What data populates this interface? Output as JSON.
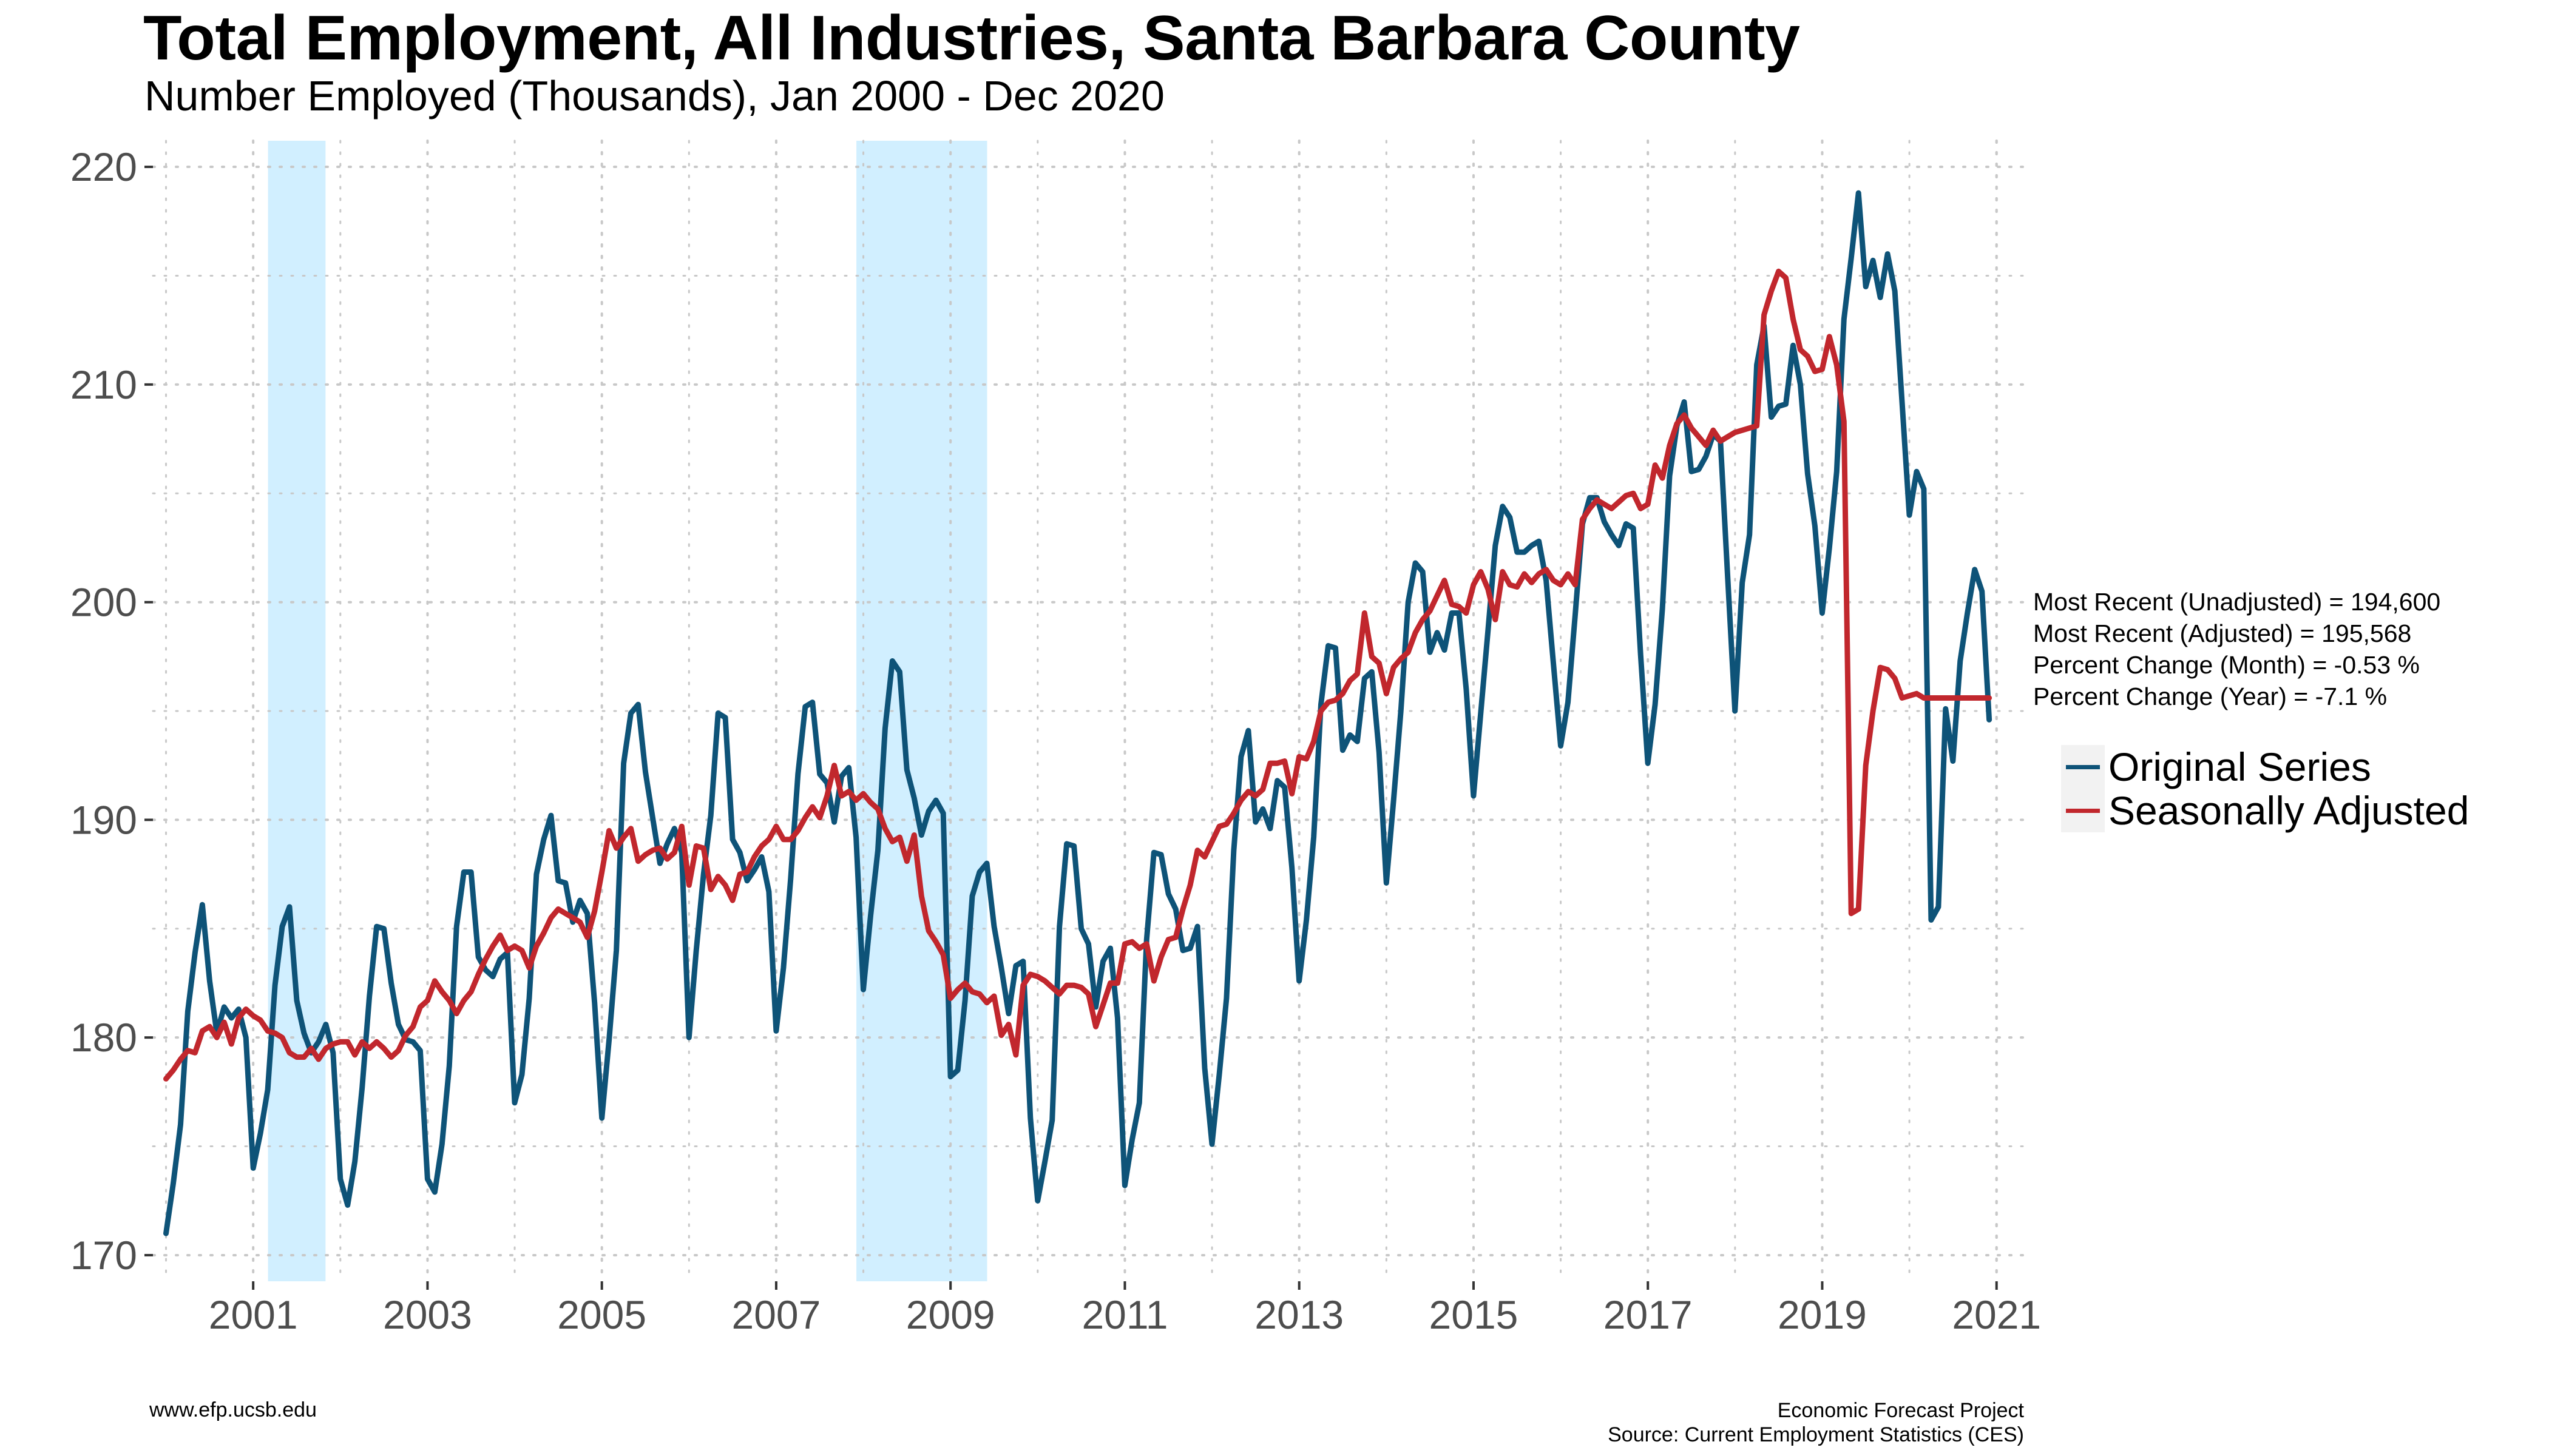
{
  "title": "Total Employment, All Industries, Santa Barbara County",
  "subtitle": "Number Employed (Thousands), Jan 2000 - Dec 2020",
  "stats": [
    "Most Recent (Unadjusted) = 194,600",
    "Most Recent (Adjusted) = 195,568",
    "Percent Change (Month) = -0.53 %",
    "Percent Change (Year) = -7.1 %"
  ],
  "footer": {
    "left": "www.efp.ucsb.edu",
    "right_line1": "Economic Forecast Project",
    "right_line2": "Source: Current Employment Statistics (CES)"
  },
  "colors": {
    "original": "#0e5378",
    "adjusted": "#c1272d",
    "recession": "#d1efff",
    "grid": "#c8c8c8"
  },
  "chart_data": {
    "type": "line",
    "x_unit": "year",
    "xlim": [
      1999.85,
      2021.35
    ],
    "ylim": [
      168.8,
      221.2
    ],
    "x_ticks": [
      2001,
      2003,
      2005,
      2007,
      2009,
      2011,
      2013,
      2015,
      2017,
      2019,
      2021
    ],
    "y_ticks": [
      170,
      180,
      190,
      200,
      210,
      220
    ],
    "grid": true,
    "legend_position": "right",
    "recessions": [
      [
        2001.17,
        2001.83
      ],
      [
        2007.92,
        2009.42
      ]
    ],
    "series": [
      {
        "name": "Original Series",
        "color": "#0e5378",
        "start": 2000.0,
        "step": 0.08333,
        "values": [
          171.0,
          173.3,
          176.0,
          181.2,
          183.9,
          186.1,
          182.6,
          180.2,
          181.4,
          180.9,
          181.3,
          180.0,
          174.0,
          175.6,
          177.6,
          182.4,
          185.1,
          186.0,
          181.7,
          180.2,
          179.3,
          179.8,
          180.6,
          179.3,
          173.5,
          172.3,
          174.3,
          177.7,
          181.9,
          185.1,
          185.0,
          182.5,
          180.6,
          179.9,
          179.8,
          179.4,
          173.5,
          172.9,
          175.1,
          178.7,
          185.1,
          187.6,
          187.6,
          183.7,
          183.1,
          182.8,
          183.6,
          183.9,
          177.0,
          178.3,
          181.8,
          187.5,
          189.1,
          190.2,
          187.2,
          187.1,
          185.3,
          186.3,
          185.7,
          181.6,
          176.3,
          179.9,
          184.0,
          192.6,
          194.9,
          195.3,
          192.2,
          190.1,
          188.0,
          188.9,
          189.6,
          188.5,
          180.0,
          184.0,
          187.5,
          190.2,
          194.9,
          194.7,
          189.1,
          188.5,
          187.2,
          187.7,
          188.3,
          186.7,
          180.3,
          183.2,
          187.3,
          192.1,
          195.2,
          195.4,
          192.1,
          191.7,
          189.9,
          192.0,
          192.4,
          189.2,
          182.2,
          185.6,
          188.6,
          194.2,
          197.3,
          196.8,
          192.3,
          191.0,
          189.3,
          190.4,
          190.9,
          190.3,
          178.2,
          178.5,
          181.7,
          186.5,
          187.6,
          188.0,
          185.1,
          183.2,
          181.1,
          183.3,
          183.5,
          176.3,
          172.5,
          174.3,
          176.2,
          185.1,
          188.9,
          188.8,
          185.0,
          184.3,
          181.4,
          183.5,
          184.1,
          180.9,
          173.2,
          175.3,
          177.0,
          184.5,
          188.5,
          188.4,
          186.6,
          185.9,
          184.0,
          184.1,
          185.1,
          178.6,
          175.1,
          178.3,
          181.8,
          188.6,
          192.9,
          194.1,
          189.9,
          190.5,
          189.6,
          191.8,
          191.5,
          187.8,
          182.6,
          185.4,
          189.2,
          195.3,
          198.0,
          197.9,
          193.2,
          193.9,
          193.6,
          196.5,
          196.8,
          193.1,
          187.1,
          190.9,
          195.0,
          200.0,
          201.8,
          201.4,
          197.7,
          198.6,
          197.8,
          199.5,
          199.5,
          196.0,
          191.1,
          194.9,
          198.7,
          202.6,
          204.4,
          203.9,
          202.3,
          202.3,
          202.6,
          202.8,
          201.0,
          197.2,
          193.4,
          195.4,
          199.4,
          203.6,
          204.8,
          204.8,
          203.7,
          203.1,
          202.6,
          203.6,
          203.4,
          197.6,
          192.6,
          195.3,
          199.7,
          205.8,
          208.1,
          209.2,
          206.0,
          206.1,
          206.7,
          207.7,
          207.4,
          201.1,
          195.0,
          200.9,
          203.1,
          210.9,
          212.7,
          208.5,
          209.0,
          209.1,
          211.8,
          210.0,
          205.9,
          203.5,
          199.5,
          202.5,
          206.0,
          213.0,
          215.8,
          218.8,
          214.5,
          215.7,
          214.0,
          216.0,
          214.3,
          209.2,
          204.0,
          206.0,
          205.2,
          185.4,
          186.0,
          195.1,
          192.7,
          197.3,
          199.5,
          201.5,
          200.5,
          194.6
        ]
      },
      {
        "name": "Seasonally Adjusted",
        "color": "#c1272d",
        "start": 2000.0,
        "step": 0.08333,
        "values": [
          178.1,
          178.5,
          179.0,
          179.4,
          179.3,
          180.3,
          180.5,
          180.0,
          180.7,
          179.7,
          180.9,
          181.3,
          181.0,
          180.8,
          180.3,
          180.2,
          180.0,
          179.3,
          179.1,
          179.1,
          179.5,
          179.0,
          179.5,
          179.7,
          179.8,
          179.8,
          179.2,
          179.8,
          179.5,
          179.8,
          179.5,
          179.1,
          179.4,
          180.1,
          180.5,
          181.4,
          181.7,
          182.6,
          182.1,
          181.7,
          181.1,
          181.7,
          182.1,
          182.9,
          183.6,
          184.2,
          184.7,
          184.0,
          184.2,
          184.0,
          183.2,
          184.2,
          184.8,
          185.5,
          185.9,
          185.7,
          185.5,
          185.3,
          184.6,
          185.8,
          187.6,
          189.5,
          188.7,
          189.2,
          189.6,
          188.1,
          188.4,
          188.6,
          188.7,
          188.2,
          188.5,
          189.7,
          187.0,
          188.8,
          188.7,
          186.8,
          187.4,
          187.0,
          186.3,
          187.5,
          187.6,
          188.3,
          188.8,
          189.1,
          189.7,
          189.1,
          189.1,
          189.5,
          190.1,
          190.6,
          190.1,
          191.1,
          192.5,
          191.1,
          191.3,
          190.9,
          191.2,
          190.8,
          190.5,
          189.6,
          189.0,
          189.2,
          188.1,
          189.3,
          186.5,
          184.9,
          184.4,
          183.8,
          181.8,
          182.2,
          182.5,
          182.1,
          182.0,
          181.6,
          181.9,
          180.1,
          180.6,
          179.2,
          182.4,
          182.9,
          182.8,
          182.6,
          182.3,
          182.0,
          182.4,
          182.4,
          182.3,
          182.0,
          180.5,
          181.5,
          182.5,
          182.5,
          184.3,
          184.4,
          184.1,
          184.3,
          182.6,
          183.7,
          184.5,
          184.6,
          185.9,
          187.0,
          188.6,
          188.3,
          189.0,
          189.7,
          189.8,
          190.3,
          190.9,
          191.3,
          191.1,
          191.4,
          192.6,
          192.6,
          192.7,
          191.2,
          192.9,
          192.8,
          193.6,
          195.0,
          195.4,
          195.5,
          195.8,
          196.4,
          196.7,
          199.5,
          197.5,
          197.2,
          195.8,
          197.0,
          197.4,
          197.7,
          198.6,
          199.2,
          199.6,
          200.3,
          201.0,
          199.9,
          199.8,
          199.5,
          200.8,
          201.4,
          200.6,
          199.2,
          201.4,
          200.8,
          200.7,
          201.3,
          200.9,
          201.3,
          201.5,
          201.0,
          200.8,
          201.3,
          200.8,
          203.8,
          204.3,
          204.7,
          204.5,
          204.3,
          204.6,
          204.9,
          205.0,
          204.3,
          204.5,
          206.3,
          205.7,
          207.2,
          208.2,
          208.6,
          208.0,
          207.6,
          207.2,
          207.9,
          207.4,
          207.6,
          207.8,
          207.9,
          208.0,
          208.1,
          213.2,
          214.3,
          215.2,
          214.9,
          213.0,
          211.6,
          211.3,
          210.6,
          210.7,
          212.2,
          210.9,
          208.3,
          185.7,
          185.9,
          192.5,
          195.0,
          197.0,
          196.9,
          196.5,
          195.6,
          195.7,
          195.8,
          195.6,
          195.6,
          195.6,
          195.6,
          195.6,
          195.6,
          195.6,
          195.6,
          195.6,
          195.6
        ],
        "n_points": 252
      }
    ]
  },
  "legend": {
    "original_label": "Original Series",
    "adjusted_label": "Seasonally Adjusted"
  }
}
